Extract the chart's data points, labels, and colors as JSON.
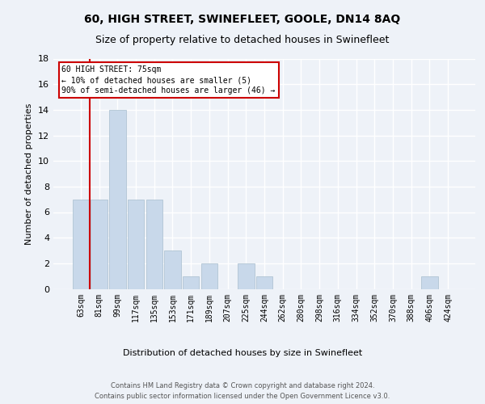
{
  "title": "60, HIGH STREET, SWINEFLEET, GOOLE, DN14 8AQ",
  "subtitle": "Size of property relative to detached houses in Swinefleet",
  "xlabel": "Distribution of detached houses by size in Swinefleet",
  "ylabel": "Number of detached properties",
  "bar_color": "#c8d8ea",
  "bar_edge_color": "#a8bece",
  "background_color": "#eef2f8",
  "fig_background_color": "#eef2f8",
  "grid_color": "#ffffff",
  "categories": [
    "63sqm",
    "81sqm",
    "99sqm",
    "117sqm",
    "135sqm",
    "153sqm",
    "171sqm",
    "189sqm",
    "207sqm",
    "225sqm",
    "244sqm",
    "262sqm",
    "280sqm",
    "298sqm",
    "316sqm",
    "334sqm",
    "352sqm",
    "370sqm",
    "388sqm",
    "406sqm",
    "424sqm"
  ],
  "values": [
    7,
    7,
    14,
    7,
    7,
    3,
    1,
    2,
    0,
    2,
    1,
    0,
    0,
    0,
    0,
    0,
    0,
    0,
    0,
    1,
    0
  ],
  "ylim": [
    0,
    18
  ],
  "yticks": [
    0,
    2,
    4,
    6,
    8,
    10,
    12,
    14,
    16,
    18
  ],
  "property_line_color": "#cc0000",
  "property_line_x": 0.5,
  "annotation_title": "60 HIGH STREET: 75sqm",
  "annotation_line1": "← 10% of detached houses are smaller (5)",
  "annotation_line2": "90% of semi-detached houses are larger (46) →",
  "footer_line1": "Contains HM Land Registry data © Crown copyright and database right 2024.",
  "footer_line2": "Contains public sector information licensed under the Open Government Licence v3.0.",
  "title_fontsize": 10,
  "subtitle_fontsize": 9,
  "ylabel_fontsize": 8,
  "xlabel_fontsize": 8,
  "tick_fontsize": 7,
  "annotation_fontsize": 7,
  "footer_fontsize": 6
}
